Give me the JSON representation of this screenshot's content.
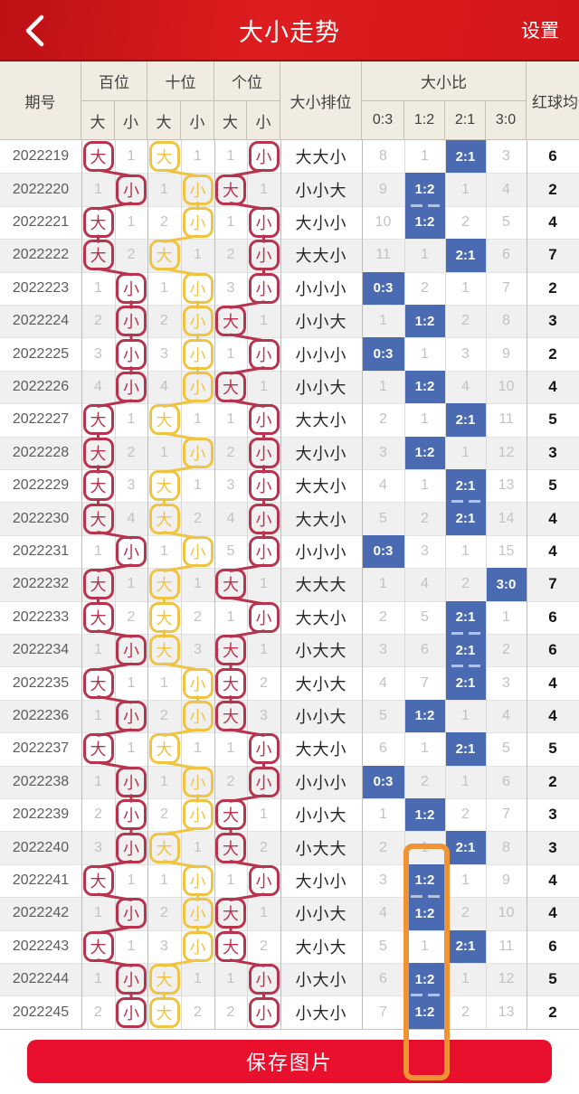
{
  "header": {
    "title": "大小走势",
    "settings": "设置"
  },
  "table": {
    "period_header": "期号",
    "groups": [
      {
        "label": "百位"
      },
      {
        "label": "十位"
      },
      {
        "label": "个位"
      }
    ],
    "sub_big": "大",
    "sub_small": "小",
    "rank_header": "大小排位",
    "ratio_header": "大小比",
    "ratio_cols": [
      "0:3",
      "1:2",
      "2:1",
      "3:0"
    ],
    "avg_header": "红球均值",
    "rows": [
      {
        "period": "2022219",
        "bai": {
          "mark": "big",
          "num": "1"
        },
        "shi": {
          "mark": "big",
          "num": "1"
        },
        "ge": {
          "mark": "small",
          "num": "1"
        },
        "rank": "大大小",
        "ratios": [
          "8",
          "1",
          "2:1",
          "3"
        ],
        "hl": 2,
        "avg": "6"
      },
      {
        "period": "2022220",
        "bai": {
          "mark": "small",
          "num": "1"
        },
        "shi": {
          "mark": "small",
          "num": "1"
        },
        "ge": {
          "mark": "big",
          "num": "1"
        },
        "rank": "小小大",
        "ratios": [
          "9",
          "1:2",
          "1",
          "4"
        ],
        "hl": 1,
        "avg": "2"
      },
      {
        "period": "2022221",
        "bai": {
          "mark": "big",
          "num": "1"
        },
        "shi": {
          "mark": "small",
          "num": "2"
        },
        "ge": {
          "mark": "small",
          "num": "1"
        },
        "rank": "大小小",
        "ratios": [
          "10",
          "1:2",
          "2",
          "5"
        ],
        "hl": 1,
        "avg": "4"
      },
      {
        "period": "2022222",
        "bai": {
          "mark": "big",
          "num": "2"
        },
        "shi": {
          "mark": "big",
          "num": "1"
        },
        "ge": {
          "mark": "small",
          "num": "2"
        },
        "rank": "大大小",
        "ratios": [
          "11",
          "1",
          "2:1",
          "6"
        ],
        "hl": 2,
        "avg": "7"
      },
      {
        "period": "2022223",
        "bai": {
          "mark": "small",
          "num": "1"
        },
        "shi": {
          "mark": "small",
          "num": "1"
        },
        "ge": {
          "mark": "small",
          "num": "3"
        },
        "rank": "小小小",
        "ratios": [
          "0:3",
          "2",
          "1",
          "7"
        ],
        "hl": 0,
        "avg": "2"
      },
      {
        "period": "2022224",
        "bai": {
          "mark": "small",
          "num": "2"
        },
        "shi": {
          "mark": "small",
          "num": "2"
        },
        "ge": {
          "mark": "big",
          "num": "1"
        },
        "rank": "小小大",
        "ratios": [
          "1",
          "1:2",
          "2",
          "8"
        ],
        "hl": 1,
        "avg": "3"
      },
      {
        "period": "2022225",
        "bai": {
          "mark": "small",
          "num": "3"
        },
        "shi": {
          "mark": "small",
          "num": "3"
        },
        "ge": {
          "mark": "small",
          "num": "1"
        },
        "rank": "小小小",
        "ratios": [
          "0:3",
          "1",
          "3",
          "9"
        ],
        "hl": 0,
        "avg": "2"
      },
      {
        "period": "2022226",
        "bai": {
          "mark": "small",
          "num": "4"
        },
        "shi": {
          "mark": "small",
          "num": "4"
        },
        "ge": {
          "mark": "big",
          "num": "1"
        },
        "rank": "小小大",
        "ratios": [
          "1",
          "1:2",
          "4",
          "10"
        ],
        "hl": 1,
        "avg": "4"
      },
      {
        "period": "2022227",
        "bai": {
          "mark": "big",
          "num": "1"
        },
        "shi": {
          "mark": "big",
          "num": "1"
        },
        "ge": {
          "mark": "small",
          "num": "1"
        },
        "rank": "大大小",
        "ratios": [
          "2",
          "1",
          "2:1",
          "11"
        ],
        "hl": 2,
        "avg": "5"
      },
      {
        "period": "2022228",
        "bai": {
          "mark": "big",
          "num": "2"
        },
        "shi": {
          "mark": "small",
          "num": "1"
        },
        "ge": {
          "mark": "small",
          "num": "2"
        },
        "rank": "大小小",
        "ratios": [
          "3",
          "1:2",
          "1",
          "12"
        ],
        "hl": 1,
        "avg": "3"
      },
      {
        "period": "2022229",
        "bai": {
          "mark": "big",
          "num": "3"
        },
        "shi": {
          "mark": "big",
          "num": "1"
        },
        "ge": {
          "mark": "small",
          "num": "3"
        },
        "rank": "大大小",
        "ratios": [
          "4",
          "1",
          "2:1",
          "13"
        ],
        "hl": 2,
        "avg": "5"
      },
      {
        "period": "2022230",
        "bai": {
          "mark": "big",
          "num": "4"
        },
        "shi": {
          "mark": "big",
          "num": "2"
        },
        "ge": {
          "mark": "small",
          "num": "4"
        },
        "rank": "大大小",
        "ratios": [
          "5",
          "2",
          "2:1",
          "14"
        ],
        "hl": 2,
        "avg": "4"
      },
      {
        "period": "2022231",
        "bai": {
          "mark": "small",
          "num": "1"
        },
        "shi": {
          "mark": "small",
          "num": "1"
        },
        "ge": {
          "mark": "small",
          "num": "5"
        },
        "rank": "小小小",
        "ratios": [
          "0:3",
          "3",
          "1",
          "15"
        ],
        "hl": 0,
        "avg": "4"
      },
      {
        "period": "2022232",
        "bai": {
          "mark": "big",
          "num": "1"
        },
        "shi": {
          "mark": "big",
          "num": "1"
        },
        "ge": {
          "mark": "big",
          "num": "1"
        },
        "rank": "大大大",
        "ratios": [
          "1",
          "4",
          "2",
          "3:0"
        ],
        "hl": 3,
        "avg": "7"
      },
      {
        "period": "2022233",
        "bai": {
          "mark": "big",
          "num": "2"
        },
        "shi": {
          "mark": "big",
          "num": "2"
        },
        "ge": {
          "mark": "small",
          "num": "1"
        },
        "rank": "大大小",
        "ratios": [
          "2",
          "5",
          "2:1",
          "1"
        ],
        "hl": 2,
        "avg": "6"
      },
      {
        "period": "2022234",
        "bai": {
          "mark": "small",
          "num": "1"
        },
        "shi": {
          "mark": "big",
          "num": "3"
        },
        "ge": {
          "mark": "big",
          "num": "1"
        },
        "rank": "小大大",
        "ratios": [
          "3",
          "6",
          "2:1",
          "2"
        ],
        "hl": 2,
        "avg": "6"
      },
      {
        "period": "2022235",
        "bai": {
          "mark": "big",
          "num": "1"
        },
        "shi": {
          "mark": "small",
          "num": "1"
        },
        "ge": {
          "mark": "big",
          "num": "2"
        },
        "rank": "大小大",
        "ratios": [
          "4",
          "7",
          "2:1",
          "3"
        ],
        "hl": 2,
        "avg": "4"
      },
      {
        "period": "2022236",
        "bai": {
          "mark": "small",
          "num": "1"
        },
        "shi": {
          "mark": "small",
          "num": "2"
        },
        "ge": {
          "mark": "big",
          "num": "3"
        },
        "rank": "小小大",
        "ratios": [
          "5",
          "1:2",
          "1",
          "4"
        ],
        "hl": 1,
        "avg": "4"
      },
      {
        "period": "2022237",
        "bai": {
          "mark": "big",
          "num": "1"
        },
        "shi": {
          "mark": "big",
          "num": "1"
        },
        "ge": {
          "mark": "small",
          "num": "1"
        },
        "rank": "大大小",
        "ratios": [
          "6",
          "1",
          "2:1",
          "5"
        ],
        "hl": 2,
        "avg": "5"
      },
      {
        "period": "2022238",
        "bai": {
          "mark": "small",
          "num": "1"
        },
        "shi": {
          "mark": "small",
          "num": "1"
        },
        "ge": {
          "mark": "small",
          "num": "2"
        },
        "rank": "小小小",
        "ratios": [
          "0:3",
          "2",
          "1",
          "6"
        ],
        "hl": 0,
        "avg": "2"
      },
      {
        "period": "2022239",
        "bai": {
          "mark": "small",
          "num": "2"
        },
        "shi": {
          "mark": "small",
          "num": "2"
        },
        "ge": {
          "mark": "big",
          "num": "1"
        },
        "rank": "小小大",
        "ratios": [
          "1",
          "1:2",
          "2",
          "7"
        ],
        "hl": 1,
        "avg": "3"
      },
      {
        "period": "2022240",
        "bai": {
          "mark": "small",
          "num": "3"
        },
        "shi": {
          "mark": "big",
          "num": "1"
        },
        "ge": {
          "mark": "big",
          "num": "2"
        },
        "rank": "小大大",
        "ratios": [
          "2",
          "1",
          "2:1",
          "8"
        ],
        "hl": 2,
        "avg": "3"
      },
      {
        "period": "2022241",
        "bai": {
          "mark": "big",
          "num": "1"
        },
        "shi": {
          "mark": "small",
          "num": "1"
        },
        "ge": {
          "mark": "small",
          "num": "1"
        },
        "rank": "大小小",
        "ratios": [
          "3",
          "1:2",
          "1",
          "9"
        ],
        "hl": 1,
        "avg": "4"
      },
      {
        "period": "2022242",
        "bai": {
          "mark": "small",
          "num": "1"
        },
        "shi": {
          "mark": "small",
          "num": "2"
        },
        "ge": {
          "mark": "big",
          "num": "1"
        },
        "rank": "小小大",
        "ratios": [
          "4",
          "1:2",
          "2",
          "10"
        ],
        "hl": 1,
        "avg": "4"
      },
      {
        "period": "2022243",
        "bai": {
          "mark": "big",
          "num": "1"
        },
        "shi": {
          "mark": "small",
          "num": "3"
        },
        "ge": {
          "mark": "big",
          "num": "2"
        },
        "rank": "大小大",
        "ratios": [
          "5",
          "1",
          "2:1",
          "11"
        ],
        "hl": 2,
        "avg": "6"
      },
      {
        "period": "2022244",
        "bai": {
          "mark": "small",
          "num": "1"
        },
        "shi": {
          "mark": "big",
          "num": "1"
        },
        "ge": {
          "mark": "small",
          "num": "1"
        },
        "rank": "小大小",
        "ratios": [
          "6",
          "1:2",
          "1",
          "12"
        ],
        "hl": 1,
        "avg": "5"
      },
      {
        "period": "2022245",
        "bai": {
          "mark": "small",
          "num": "2"
        },
        "shi": {
          "mark": "big",
          "num": "2"
        },
        "ge": {
          "mark": "small",
          "num": "2"
        },
        "rank": "小大小",
        "ratios": [
          "7",
          "1:2",
          "2",
          "13"
        ],
        "hl": 1,
        "avg": "2"
      }
    ]
  },
  "footer": {
    "save_button": "保存图片"
  },
  "colors": {
    "app_red": "#d6171b",
    "button_red": "#e8102c",
    "highlight_blue": "#4a6bb2",
    "box_red": "#b7344e",
    "box_yellow": "#f0c443",
    "annotation_orange": "#ef9334"
  }
}
